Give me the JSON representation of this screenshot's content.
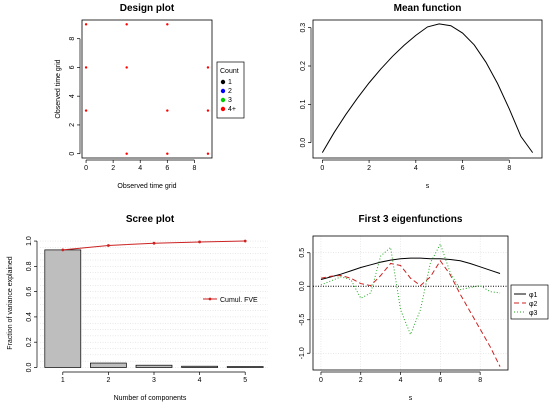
{
  "chart_data": [
    {
      "type": "scatter",
      "title": "Design plot",
      "xlabel": "Observed time grid",
      "ylabel": "Observed time grid",
      "xlim": [
        0,
        9
      ],
      "ylim": [
        0,
        9
      ],
      "xticks": [
        "0",
        "2",
        "4",
        "6",
        "8"
      ],
      "yticks": [
        "0",
        "2",
        "4",
        "6",
        "8"
      ],
      "points": [
        {
          "x": 0,
          "y": 9
        },
        {
          "x": 3,
          "y": 9
        },
        {
          "x": 6,
          "y": 9
        },
        {
          "x": 0,
          "y": 6
        },
        {
          "x": 3,
          "y": 6
        },
        {
          "x": 9,
          "y": 6
        },
        {
          "x": 0,
          "y": 3
        },
        {
          "x": 6,
          "y": 3
        },
        {
          "x": 9,
          "y": 3
        },
        {
          "x": 3,
          "y": 0
        },
        {
          "x": 6,
          "y": 0
        },
        {
          "x": 9,
          "y": 0
        }
      ],
      "point_color": "#ff0000",
      "legend": {
        "title": "Count",
        "entries": [
          {
            "label": "1",
            "color": "#000000"
          },
          {
            "label": "2",
            "color": "#0000ff"
          },
          {
            "label": "3",
            "color": "#00cc00"
          },
          {
            "label": "4+",
            "color": "#ff0000"
          }
        ]
      }
    },
    {
      "type": "line",
      "title": "Mean function",
      "xlabel": "s",
      "ylabel": "",
      "xlim": [
        0,
        9
      ],
      "ylim": [
        -0.03,
        0.31
      ],
      "xticks": [
        "0",
        "2",
        "4",
        "6",
        "8"
      ],
      "yticks": [
        "0.0",
        "0.1",
        "0.2",
        "0.3"
      ],
      "x": [
        0,
        0.5,
        1,
        1.5,
        2,
        2.5,
        3,
        3.5,
        4,
        4.5,
        5,
        5.5,
        6,
        6.5,
        7,
        7.5,
        8,
        8.5,
        9
      ],
      "y": [
        -0.026,
        0.026,
        0.073,
        0.116,
        0.156,
        0.192,
        0.225,
        0.254,
        0.28,
        0.302,
        0.31,
        0.305,
        0.286,
        0.255,
        0.21,
        0.154,
        0.088,
        0.016,
        -0.026
      ],
      "color": "#000000"
    },
    {
      "type": "bar",
      "title": "Scree plot",
      "xlabel": "Number of components",
      "ylabel": "Fraction of variance explained",
      "categories": [
        "1",
        "2",
        "3",
        "4",
        "5"
      ],
      "ylim": [
        0,
        1.0
      ],
      "yticks": [
        "0.0",
        "0.2",
        "0.4",
        "0.6",
        "0.8",
        "1.0"
      ],
      "bar_color": "#bebebe",
      "grid": true,
      "series": [
        {
          "name": "",
          "type": "bar",
          "values": [
            0.93,
            0.035,
            0.018,
            0.01,
            0.007
          ]
        },
        {
          "name": "Cumul. FVE",
          "type": "line",
          "values": [
            0.93,
            0.965,
            0.983,
            0.993,
            1.0
          ],
          "color": "#cc2222"
        }
      ],
      "legend_position": "right"
    },
    {
      "type": "line",
      "title": "First 3 eigenfunctions",
      "xlabel": "s",
      "ylabel": "",
      "xlim": [
        0,
        9
      ],
      "ylim": [
        -1.25,
        0.75
      ],
      "xticks": [
        "0",
        "2",
        "4",
        "6",
        "8"
      ],
      "yticks": [
        "-1.0",
        "-0.5",
        "0.0",
        "0.5"
      ],
      "grid": true,
      "zero_line": true,
      "series": [
        {
          "name": "φ1",
          "color": "#000000",
          "dash": "solid",
          "x": [
            0,
            0.5,
            1,
            1.5,
            2,
            2.5,
            3,
            3.5,
            4,
            4.5,
            5,
            5.5,
            6,
            6.5,
            7,
            7.5,
            8,
            8.5,
            9
          ],
          "y": [
            0.1,
            0.14,
            0.18,
            0.23,
            0.28,
            0.32,
            0.36,
            0.39,
            0.41,
            0.42,
            0.42,
            0.41,
            0.41,
            0.4,
            0.38,
            0.34,
            0.29,
            0.24,
            0.19
          ]
        },
        {
          "name": "φ2",
          "color": "#cc2222",
          "dash": "5,3",
          "x": [
            0,
            0.5,
            1,
            1.5,
            2,
            2.5,
            3,
            3.5,
            4,
            4.5,
            5,
            5.5,
            6,
            6.5,
            7,
            7.5,
            8,
            8.5,
            9
          ],
          "y": [
            0.12,
            0.15,
            0.16,
            0.12,
            0.04,
            0.01,
            0.16,
            0.34,
            0.31,
            0.12,
            0.01,
            0.14,
            0.38,
            0.17,
            -0.12,
            -0.38,
            -0.64,
            -0.9,
            -1.2
          ]
        },
        {
          "name": "φ3",
          "color": "#22aa22",
          "dash": "1,2",
          "x": [
            0,
            0.5,
            1,
            1.5,
            2,
            2.5,
            3,
            3.5,
            4,
            4.5,
            5,
            5.5,
            6,
            6.5,
            7,
            7.5,
            8,
            8.5,
            9
          ],
          "y": [
            0.02,
            0.08,
            0.14,
            0.1,
            -0.18,
            -0.1,
            0.45,
            0.58,
            -0.35,
            -0.72,
            -0.35,
            0.35,
            0.63,
            0.2,
            -0.05,
            -0.02,
            0.01,
            -0.08,
            -0.1
          ]
        }
      ],
      "legend_position": "right"
    }
  ]
}
